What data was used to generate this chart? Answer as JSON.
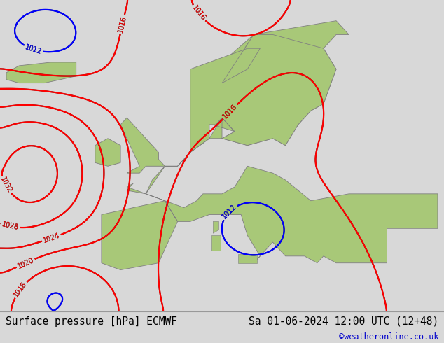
{
  "title_left": "Surface pressure [hPa] ECMWF",
  "title_right": "Sa 01-06-2024 12:00 UTC (12+48)",
  "credit": "©weatheronline.co.uk",
  "land_color": "#b8d9a0",
  "sea_color": "#b8d9a0",
  "bg_color": "#b8d9a0",
  "bottom_bar_color": "#d8d8d8",
  "text_color": "#000000",
  "credit_color": "#0000cc",
  "font_size_title": 10.5,
  "font_size_credit": 8.5,
  "fig_width": 6.34,
  "fig_height": 4.9,
  "contour_lw_main": 1.3,
  "contour_lw_color": 1.6,
  "label_fontsize": 7
}
